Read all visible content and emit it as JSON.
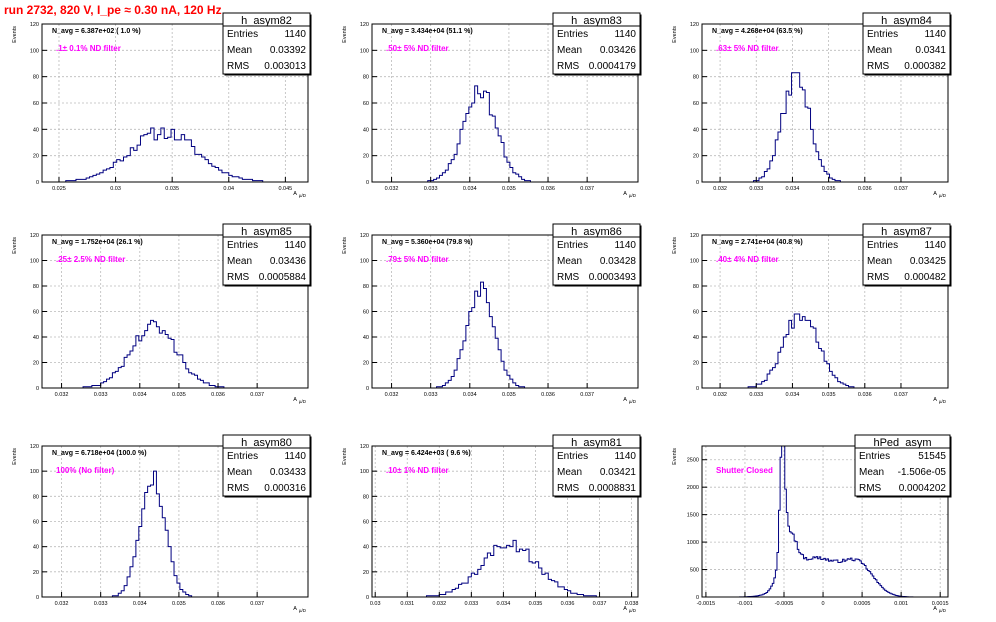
{
  "title": "run 2732,   820 V, I_pe ≈ 0.30 nA, 120 Hz",
  "axis_ylabel": "Events",
  "axis_xlabel": "A",
  "axis_xlabel_sub": "µ/D",
  "stats_labels": {
    "entries": "Entries",
    "mean": "Mean",
    "rms": "RMS"
  },
  "colors": {
    "histogram_line": "#000080",
    "annotation": "#ff00ff",
    "title": "#ff0000",
    "grid": "#bbbbbb"
  },
  "chart_data": [
    {
      "type": "bar",
      "name": "h_asym82",
      "navg": "N_avg = 6.387e+02 ( 1.0 %)",
      "filter": ".1± 0.1% ND filter",
      "stats": {
        "entries": "1140",
        "mean": "0.03392",
        "rms": "0.003013"
      },
      "xlim": [
        0.0235,
        0.047
      ],
      "ylim": [
        0,
        120
      ],
      "xticks": [
        0.025,
        0.03,
        0.035,
        0.04,
        0.045
      ],
      "xtick_labels": [
        "0.025",
        "0.03",
        "0.035",
        "0.04",
        "0.045"
      ],
      "yticks": [
        0,
        20,
        40,
        60,
        80,
        100,
        120
      ],
      "ytick_labels": [
        "0",
        "20",
        "40",
        "60",
        "80",
        "100",
        "120"
      ],
      "peaks": [
        {
          "center": 0.0342,
          "sigma": 0.003,
          "height": 38
        }
      ],
      "bin_width": 0.0003,
      "noise": 0.15,
      "seed": 11
    },
    {
      "type": "bar",
      "name": "h_asym83",
      "navg": "N_avg = 3.434e+04 (51.1 %)",
      "filter": ".50± 5% ND filter",
      "stats": {
        "entries": "1140",
        "mean": "0.03426",
        "rms": "0.0004179"
      },
      "xlim": [
        0.0315,
        0.0383
      ],
      "ylim": [
        0,
        120
      ],
      "xticks": [
        0.032,
        0.033,
        0.034,
        0.035,
        0.036,
        0.037
      ],
      "xtick_labels": [
        "0.032",
        "0.033",
        "0.034",
        "0.035",
        "0.036",
        "0.037"
      ],
      "yticks": [
        0,
        20,
        40,
        60,
        80,
        100,
        120
      ],
      "ytick_labels": [
        "0",
        "20",
        "40",
        "60",
        "80",
        "100",
        "120"
      ],
      "peaks": [
        {
          "center": 0.03426,
          "sigma": 0.00042,
          "height": 70
        }
      ],
      "bin_width": 7.5e-05,
      "noise": 0.1,
      "seed": 23
    },
    {
      "type": "bar",
      "name": "h_asym84",
      "navg": "N_avg = 4.268e+04 (63.5 %)",
      "filter": ".63± 5% ND filter",
      "stats": {
        "entries": "1140",
        "mean": "0.0341",
        "rms": "0.000382"
      },
      "xlim": [
        0.0315,
        0.0383
      ],
      "ylim": [
        0,
        120
      ],
      "xticks": [
        0.032,
        0.033,
        0.034,
        0.035,
        0.036,
        0.037
      ],
      "xtick_labels": [
        "0.032",
        "0.033",
        "0.034",
        "0.035",
        "0.036",
        "0.037"
      ],
      "yticks": [
        0,
        20,
        40,
        60,
        80,
        100,
        120
      ],
      "ytick_labels": [
        "0",
        "20",
        "40",
        "60",
        "80",
        "100",
        "120"
      ],
      "peaks": [
        {
          "center": 0.0341,
          "sigma": 0.00038,
          "height": 80
        }
      ],
      "bin_width": 7.5e-05,
      "noise": 0.1,
      "seed": 37
    },
    {
      "type": "bar",
      "name": "h_asym85",
      "navg": "N_avg = 1.752e+04 (26.1 %)",
      "filter": ".25± 2.5% ND filter",
      "stats": {
        "entries": "1140",
        "mean": "0.03436",
        "rms": "0.0005884"
      },
      "xlim": [
        0.0315,
        0.0383
      ],
      "ylim": [
        0,
        120
      ],
      "xticks": [
        0.032,
        0.033,
        0.034,
        0.035,
        0.036,
        0.037
      ],
      "xtick_labels": [
        "0.032",
        "0.033",
        "0.034",
        "0.035",
        "0.036",
        "0.037"
      ],
      "yticks": [
        0,
        20,
        40,
        60,
        80,
        100,
        120
      ],
      "ytick_labels": [
        "0",
        "20",
        "40",
        "60",
        "80",
        "100",
        "120"
      ],
      "peaks": [
        {
          "center": 0.03436,
          "sigma": 0.00059,
          "height": 48
        }
      ],
      "bin_width": 7.5e-05,
      "noise": 0.14,
      "seed": 41
    },
    {
      "type": "bar",
      "name": "h_asym86",
      "navg": "N_avg = 5.360e+04 (79.8 %)",
      "filter": ".79± 5% ND filter",
      "stats": {
        "entries": "1140",
        "mean": "0.03428",
        "rms": "0.0003493"
      },
      "xlim": [
        0.0315,
        0.0383
      ],
      "ylim": [
        0,
        120
      ],
      "xticks": [
        0.032,
        0.033,
        0.034,
        0.035,
        0.036,
        0.037
      ],
      "xtick_labels": [
        "0.032",
        "0.033",
        "0.034",
        "0.035",
        "0.036",
        "0.037"
      ],
      "yticks": [
        0,
        20,
        40,
        60,
        80,
        100,
        120
      ],
      "ytick_labels": [
        "0",
        "20",
        "40",
        "60",
        "80",
        "100",
        "120"
      ],
      "peaks": [
        {
          "center": 0.03428,
          "sigma": 0.00035,
          "height": 80
        }
      ],
      "bin_width": 7.5e-05,
      "noise": 0.1,
      "seed": 53
    },
    {
      "type": "bar",
      "name": "h_asym87",
      "navg": "N_avg = 2.741e+04 (40.8 %)",
      "filter": ".40± 4% ND filter",
      "stats": {
        "entries": "1140",
        "mean": "0.03425",
        "rms": "0.000482"
      },
      "xlim": [
        0.0315,
        0.0383
      ],
      "ylim": [
        0,
        120
      ],
      "xticks": [
        0.032,
        0.033,
        0.034,
        0.035,
        0.036,
        0.037
      ],
      "xtick_labels": [
        "0.032",
        "0.033",
        "0.034",
        "0.035",
        "0.036",
        "0.037"
      ],
      "yticks": [
        0,
        20,
        40,
        60,
        80,
        100,
        120
      ],
      "ytick_labels": [
        "0",
        "20",
        "40",
        "60",
        "80",
        "100",
        "120"
      ],
      "peaks": [
        {
          "center": 0.03425,
          "sigma": 0.00048,
          "height": 60
        }
      ],
      "bin_width": 7.5e-05,
      "noise": 0.12,
      "seed": 67
    },
    {
      "type": "bar",
      "name": "h_asym80",
      "navg": "N_avg = 6.718e+04 (100.0 %)",
      "filter": "100% (No filter)",
      "stats": {
        "entries": "1140",
        "mean": "0.03433",
        "rms": "0.000316"
      },
      "xlim": [
        0.0315,
        0.0383
      ],
      "ylim": [
        0,
        120
      ],
      "xticks": [
        0.032,
        0.033,
        0.034,
        0.035,
        0.036,
        0.037
      ],
      "xtick_labels": [
        "0.032",
        "0.033",
        "0.034",
        "0.035",
        "0.036",
        "0.037"
      ],
      "yticks": [
        0,
        20,
        40,
        60,
        80,
        100,
        120
      ],
      "ytick_labels": [
        "0",
        "20",
        "40",
        "60",
        "80",
        "100",
        "120"
      ],
      "peaks": [
        {
          "center": 0.03433,
          "sigma": 0.00032,
          "height": 95
        }
      ],
      "bin_width": 7.5e-05,
      "noise": 0.08,
      "seed": 79
    },
    {
      "type": "bar",
      "name": "h_asym81",
      "navg": "N_avg = 6.424e+03 ( 9.6 %)",
      "filter": ".10± 1% ND filter",
      "stats": {
        "entries": "1140",
        "mean": "0.03421",
        "rms": "0.0008831"
      },
      "xlim": [
        0.0299,
        0.0382
      ],
      "ylim": [
        0,
        120
      ],
      "xticks": [
        0.03,
        0.031,
        0.032,
        0.033,
        0.034,
        0.035,
        0.036,
        0.037,
        0.038
      ],
      "xtick_labels": [
        "0.03",
        "0.031",
        "0.032",
        "0.033",
        "0.034",
        "0.035",
        "0.036",
        "0.037",
        "0.038"
      ],
      "yticks": [
        0,
        20,
        40,
        60,
        80,
        100,
        120
      ],
      "ytick_labels": [
        "0",
        "20",
        "40",
        "60",
        "80",
        "100",
        "120"
      ],
      "peaks": [
        {
          "center": 0.03421,
          "sigma": 0.00088,
          "height": 42
        }
      ],
      "bin_width": 0.0001,
      "noise": 0.14,
      "seed": 89
    },
    {
      "type": "bar",
      "name": "hPed_asym",
      "navg": "",
      "filter": "Shutter Closed",
      "stats": {
        "entries": "51545",
        "mean": "-1.506e-05",
        "rms": "0.0004202"
      },
      "xlim": [
        -0.00155,
        0.0016
      ],
      "ylim": [
        0,
        2750
      ],
      "xticks": [
        -0.0015,
        -0.001,
        -0.0005,
        0,
        0.0005,
        0.001,
        0.0015
      ],
      "xtick_labels": [
        "-0.0015",
        "-0.001",
        "-0.0005",
        "0",
        "0.0005",
        "0.001",
        "0.0015"
      ],
      "yticks": [
        0,
        500,
        1000,
        1500,
        2000,
        2500
      ],
      "ytick_labels": [
        "0",
        "500",
        "1000",
        "1500",
        "2000",
        "2500"
      ],
      "peaks": [
        {
          "center": -0.00052,
          "sigma": 3e-05,
          "height": 2100
        },
        {
          "center": -0.00045,
          "sigma": 0.0001,
          "height": 900
        },
        {
          "center": -0.0001,
          "sigma": 0.00028,
          "height": 700
        },
        {
          "center": 0.00045,
          "sigma": 0.0002,
          "height": 560
        }
      ],
      "bin_width": 2e-05,
      "noise": 0.04,
      "seed": 97
    }
  ]
}
